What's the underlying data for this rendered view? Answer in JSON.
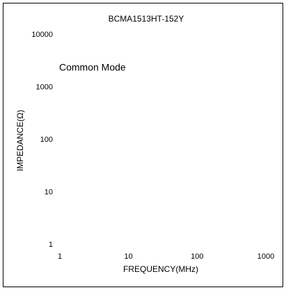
{
  "chart_data": {
    "type": "line",
    "title": "BCMA1513HT-152Y",
    "annotation": "Common Mode",
    "xlabel": "FREQUENCY(MHz)",
    "ylabel": "IMPEDANCE(Ω)",
    "xscale": "log",
    "yscale": "log",
    "xlim": [
      1,
      1000
    ],
    "xticks": [
      1,
      10,
      100,
      1000
    ],
    "ylim": [
      1,
      10000
    ],
    "yticks": [
      1,
      10,
      100,
      1000,
      10000
    ],
    "series": []
  }
}
